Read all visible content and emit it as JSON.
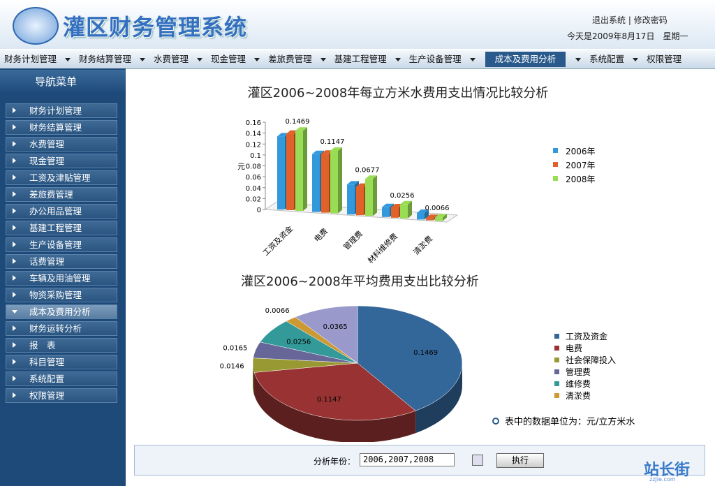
{
  "header": {
    "title": "灌区财务管理系统",
    "links": [
      "退出系统",
      "修改密码"
    ],
    "date": "今天是2009年8月17日　星期一"
  },
  "nav": {
    "items": [
      "财务计划管理",
      "财务结算管理",
      "水费管理",
      "现金管理",
      "差旅费管理",
      "基建工程管理",
      "生产设备管理",
      "成本及费用分析",
      "系统配置",
      "权限管理"
    ],
    "active": 7
  },
  "sidebar": {
    "title": "导航菜单",
    "items": [
      "财务计划管理",
      "财务结算管理",
      "水费管理",
      "现金管理",
      "工资及津贴管理",
      "差旅费管理",
      "办公用品管理",
      "基建工程管理",
      "生产设备管理",
      "话费管理",
      "车辆及用油管理",
      "物资采购管理",
      "成本及费用分析",
      "财务运转分析",
      "报　表",
      "科目管理",
      "系统配置",
      "权限管理"
    ],
    "active": 12
  },
  "chart_data": [
    {
      "type": "bar",
      "title": "灌区2006~2008年每立方米水费用支出情况比较分析",
      "y_label": "元",
      "categories": [
        "工资及资金",
        "电费",
        "管理费",
        "材料维修费",
        "清淤费"
      ],
      "series": [
        {
          "name": "2006年",
          "color": "#3399dd",
          "values": [
            0.134,
            0.106,
            0.055,
            0.018,
            0.012
          ]
        },
        {
          "name": "2007年",
          "color": "#e0622a",
          "values": [
            0.14,
            0.108,
            0.052,
            0.019,
            0.004
          ]
        },
        {
          "name": "2008年",
          "color": "#99dd55",
          "values": [
            0.1469,
            0.1147,
            0.0677,
            0.0256,
            0.0066
          ]
        }
      ],
      "ylim": [
        0,
        0.16
      ],
      "yticks": [
        0,
        0.02,
        0.04,
        0.06,
        0.08,
        0.1,
        0.12,
        0.14,
        0.16
      ],
      "labeled_series": 2
    },
    {
      "type": "pie",
      "title": "灌区2006~2008年平均费用支出比较分析",
      "categories": [
        "工资及资金",
        "电费",
        "社会保障投入",
        "管理费",
        "维修费",
        "清淤费",
        null
      ],
      "values": [
        0.1469,
        0.1147,
        0.0146,
        0.0165,
        0.0256,
        0.0066,
        0.0365
      ],
      "colors": [
        "#336699",
        "#993333",
        "#999933",
        "#666699",
        "#339999",
        "#cc9933",
        "#9999cc"
      ],
      "note": "表中的数据单位为：元/立方米水"
    }
  ],
  "form": {
    "label": "分析年份：",
    "value": "2006,2007,2008",
    "button": "执行"
  },
  "watermark": {
    "text": "站长街",
    "url": "zzJie.com"
  }
}
